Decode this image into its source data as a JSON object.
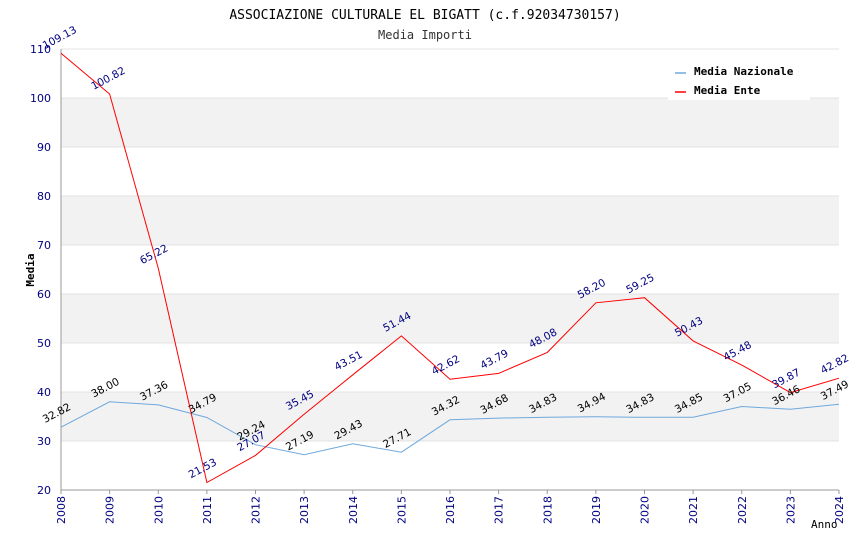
{
  "chart_data": {
    "type": "line",
    "title": "ASSOCIAZIONE CULTURALE EL BIGATT (c.f.92034730157)",
    "subtitle": "Media Importi",
    "xlabel": "Anno",
    "ylabel": "Media",
    "ylim": [
      20,
      110
    ],
    "yticks": [
      20,
      30,
      40,
      50,
      60,
      70,
      80,
      90,
      100,
      110
    ],
    "grid": true,
    "legend_position": "top-right",
    "categories": [
      "2008",
      "2009",
      "2010",
      "2011",
      "2012",
      "2013",
      "2014",
      "2015",
      "2016",
      "2017",
      "2018",
      "2019",
      "2020",
      "2021",
      "2022",
      "2023",
      "2024"
    ],
    "series": [
      {
        "name": "Media Nazionale",
        "color": "#6fa8dc",
        "label_color": "#000000",
        "values": [
          32.82,
          38.0,
          37.36,
          34.79,
          29.24,
          27.19,
          29.43,
          27.71,
          34.32,
          34.68,
          34.83,
          34.94,
          34.83,
          34.85,
          37.05,
          36.46,
          37.49
        ],
        "labels": [
          "32.82",
          "38.00",
          "37.36",
          "34.79",
          "29.24",
          "27.19",
          "29.43",
          "27.71",
          "34.32",
          "34.68",
          "34.83",
          "34.94",
          "34.83",
          "34.85",
          "37.05",
          "36.46",
          "37.49"
        ]
      },
      {
        "name": "Media Ente",
        "color": "#ff0000",
        "label_color": "#000080",
        "values": [
          109.13,
          100.82,
          65.22,
          21.53,
          27.07,
          35.45,
          43.51,
          51.44,
          42.62,
          43.79,
          48.08,
          58.2,
          59.25,
          50.43,
          45.48,
          39.87,
          42.82
        ],
        "labels": [
          "109.13",
          "100.82",
          "65.22",
          "21.53",
          "27.07",
          "35.45",
          "43.51",
          "51.44",
          "42.62",
          "43.79",
          "48.08",
          "58.20",
          "59.25",
          "50.43",
          "45.48",
          "39.87",
          "42.82"
        ]
      }
    ]
  }
}
